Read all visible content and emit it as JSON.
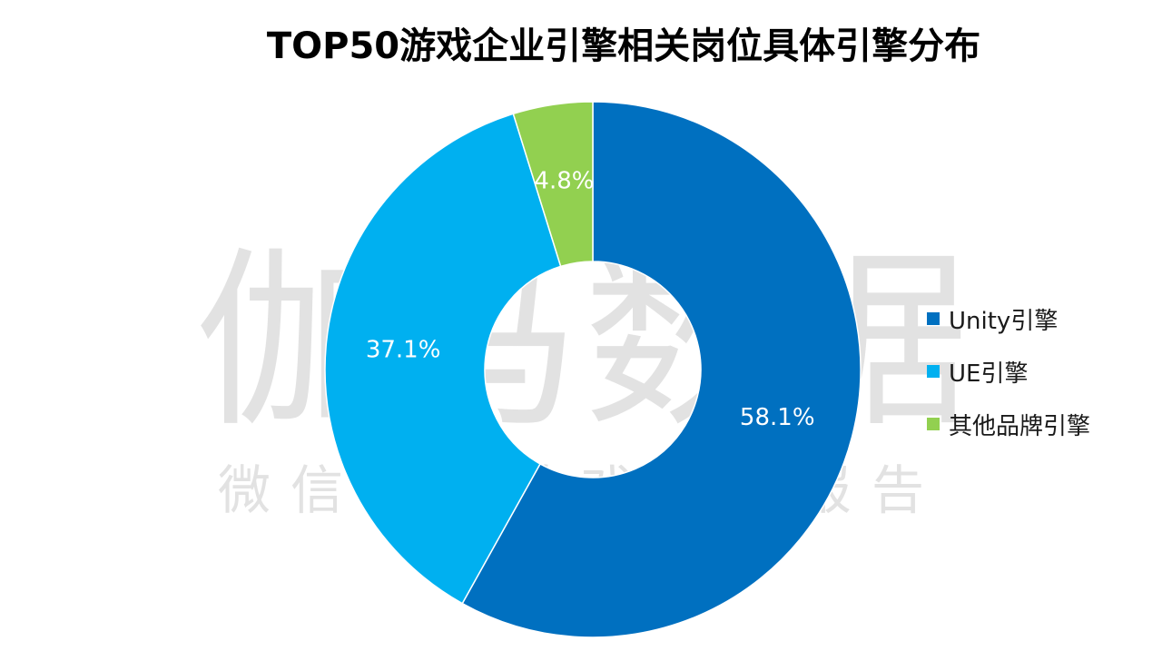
{
  "title": "TOP50游戏企业引擎相关岗位具体引擎分布",
  "watermark": {
    "main": "伽马数据",
    "sub": "微信号：游戏产业报告"
  },
  "chart_data": {
    "type": "pie",
    "variant": "donut",
    "title": "TOP50游戏企业引擎相关岗位具体引擎分布",
    "start": "top, clockwise",
    "legend_position": "right",
    "slices": [
      {
        "label": "Unity引擎",
        "value": 58.1,
        "value_label": "58.1%",
        "color": "#0070C0"
      },
      {
        "label": "UE引擎",
        "value": 37.1,
        "value_label": "37.1%",
        "color": "#00B0F0"
      },
      {
        "label": "其他品牌引擎",
        "value": 4.8,
        "value_label": "4.8%",
        "color": "#92D050"
      }
    ]
  }
}
